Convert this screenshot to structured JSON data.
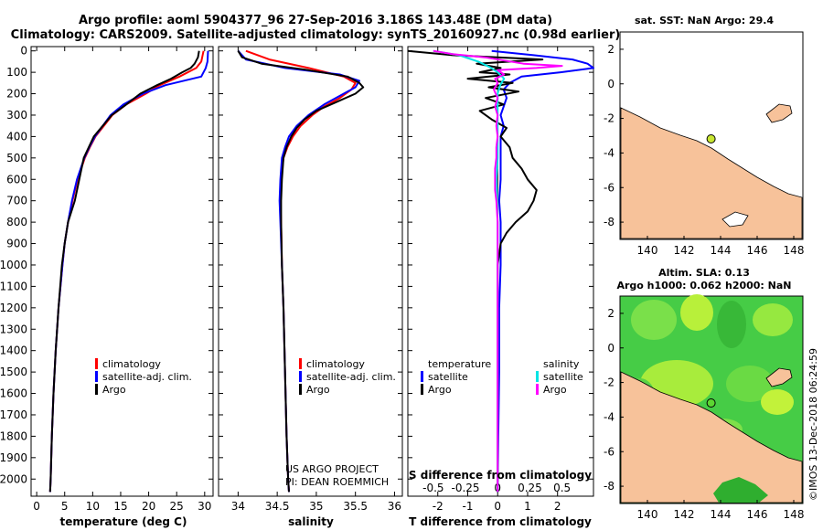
{
  "header": {
    "title_line1": "Argo profile: aoml 5904377_96 27-Sep-2016 3.186S 143.48E (DM data)",
    "title_line2": "Climatology: CARS2009. Satellite-adjusted climatology: synTS_20160927.nc (0.98d earlier)"
  },
  "colors": {
    "climatology": "#ff0000",
    "satellite": "#0000ff",
    "argo": "#000000",
    "sat_salinity": "#00e5e5",
    "argo_salinity": "#ff00ff",
    "land": "#f7c29a",
    "sea": "#ffffff"
  },
  "depth_ticks": [
    "0",
    "100",
    "200",
    "300",
    "400",
    "500",
    "600",
    "700",
    "800",
    "900",
    "1000",
    "1100",
    "1200",
    "1300",
    "1400",
    "1500",
    "1600",
    "1700",
    "1800",
    "1900",
    "2000"
  ],
  "chart_data": [
    {
      "type": "line",
      "id": "temperature",
      "xlabel": "temperature (deg C)",
      "xlim": [
        -1,
        31.5
      ],
      "ylim": [
        2080,
        -20
      ],
      "xticks": [
        "0",
        "5",
        "10",
        "15",
        "20",
        "25",
        "30"
      ],
      "legend": [
        "climatology",
        "satellite-adj. clim.",
        "Argo"
      ],
      "series": [
        {
          "name": "climatology",
          "depth": [
            0,
            50,
            80,
            120,
            160,
            200,
            250,
            300,
            350,
            400,
            450,
            500,
            600,
            700,
            800,
            900,
            1000,
            1200,
            1400,
            1600,
            1800,
            2000,
            2060
          ],
          "values": [
            29.8,
            29.4,
            28.5,
            25.5,
            22,
            19.5,
            16,
            13.5,
            12,
            10.5,
            9.5,
            8.6,
            7.3,
            6.4,
            5.6,
            5.0,
            4.6,
            3.9,
            3.4,
            3.0,
            2.7,
            2.5,
            2.4
          ]
        },
        {
          "name": "satellite-adj. clim.",
          "depth": [
            0,
            50,
            80,
            120,
            160,
            200,
            250,
            300,
            350,
            400,
            450,
            500,
            600,
            700,
            800,
            900,
            1000,
            1200,
            1400,
            1600,
            1800,
            2000,
            2060
          ],
          "values": [
            30.6,
            30.5,
            30.2,
            29.4,
            23,
            19,
            15.5,
            13.2,
            11.8,
            10.4,
            9.4,
            8.5,
            7.2,
            6.3,
            5.6,
            5.0,
            4.6,
            3.9,
            3.4,
            3.0,
            2.7,
            2.5,
            2.4
          ]
        },
        {
          "name": "Argo",
          "depth": [
            0,
            30,
            60,
            80,
            100,
            130,
            160,
            200,
            250,
            300,
            350,
            400,
            450,
            500,
            600,
            700,
            800,
            900,
            1000,
            1200,
            1400,
            1600,
            1800,
            2000,
            2060
          ],
          "values": [
            29.0,
            28.8,
            28.2,
            27.5,
            26,
            24,
            21.5,
            18.5,
            16,
            13.4,
            11.8,
            10.2,
            9.3,
            8.4,
            7.6,
            6.8,
            5.6,
            5.0,
            4.5,
            3.9,
            3.4,
            3.0,
            2.7,
            2.5,
            2.4
          ]
        }
      ]
    },
    {
      "type": "line",
      "id": "salinity",
      "xlabel": "salinity",
      "xlim": [
        33.75,
        36.1
      ],
      "ylim": [
        2080,
        -20
      ],
      "xticks": [
        "34",
        "34.5",
        "35",
        "35.5",
        "36"
      ],
      "legend": [
        "climatology",
        "satellite-adj. clim.",
        "Argo"
      ],
      "series": [
        {
          "name": "climatology",
          "depth": [
            0,
            40,
            80,
            120,
            150,
            180,
            220,
            260,
            300,
            350,
            400,
            450,
            500,
            600,
            700,
            800,
            1000,
            1200,
            1500,
            1800,
            2000,
            2060
          ],
          "values": [
            34.1,
            34.4,
            34.9,
            35.35,
            35.5,
            35.45,
            35.3,
            35.1,
            34.95,
            34.8,
            34.7,
            34.63,
            34.58,
            34.55,
            34.54,
            34.55,
            34.56,
            34.58,
            34.6,
            34.62,
            34.64,
            34.65
          ]
        },
        {
          "name": "satellite-adj. clim.",
          "depth": [
            0,
            40,
            80,
            110,
            140,
            170,
            210,
            250,
            300,
            350,
            400,
            450,
            500,
            600,
            700,
            800,
            1000,
            1200,
            1500,
            1800,
            2000,
            2060
          ],
          "values": [
            34.0,
            34.1,
            34.6,
            35.3,
            35.55,
            35.5,
            35.3,
            35.1,
            34.9,
            34.75,
            34.65,
            34.6,
            34.56,
            34.54,
            34.53,
            34.54,
            34.56,
            34.58,
            34.6,
            34.62,
            34.64,
            34.65
          ]
        },
        {
          "name": "Argo",
          "depth": [
            0,
            30,
            60,
            90,
            120,
            150,
            170,
            200,
            240,
            280,
            320,
            360,
            400,
            450,
            500,
            600,
            700,
            800,
            1000,
            1200,
            1500,
            1800,
            2000,
            2060
          ],
          "values": [
            34.0,
            34.05,
            34.3,
            34.9,
            35.4,
            35.55,
            35.6,
            35.5,
            35.25,
            35.0,
            34.85,
            34.75,
            34.68,
            34.62,
            34.58,
            34.56,
            34.55,
            34.55,
            34.56,
            34.58,
            34.6,
            34.62,
            34.64,
            34.65
          ]
        }
      ],
      "annotations": [
        "US ARGO PROJECT",
        "PI: DEAN ROEMMICH"
      ]
    },
    {
      "type": "line",
      "id": "differences",
      "xlabel": "T difference from climatology",
      "top_label": "S difference from climatology",
      "xlim": [
        -3,
        3.2
      ],
      "ylim": [
        2080,
        -20
      ],
      "xticks": [
        "-2",
        "-1",
        "0",
        "1",
        "2"
      ],
      "top_ticks": [
        "-0.5",
        "-0.25",
        "0",
        "0.25",
        "0.5"
      ],
      "legend_left_title": "temperature",
      "legend_right_title": "salinity",
      "legend": [
        "satellite",
        "Argo",
        "satellite",
        "Argo"
      ],
      "series": [
        {
          "name": "temperature satellite",
          "depth": [
            0,
            20,
            40,
            60,
            80,
            100,
            120,
            150,
            180,
            220,
            260,
            300,
            350,
            400,
            500,
            600,
            700,
            800,
            900,
            1000,
            1200,
            1500,
            1800,
            2060
          ],
          "values": [
            -0.2,
            1.2,
            2.5,
            3.0,
            3.2,
            2.1,
            0.8,
            0.4,
            0.2,
            0.3,
            0.2,
            0.1,
            0.2,
            0.1,
            0.1,
            0.1,
            0.05,
            0.1,
            0.1,
            0.1,
            0.05,
            0.05,
            0.02,
            0.0
          ]
        },
        {
          "name": "temperature Argo",
          "depth": [
            0,
            20,
            40,
            60,
            80,
            100,
            110,
            130,
            150,
            170,
            190,
            220,
            250,
            280,
            320,
            360,
            400,
            450,
            500,
            550,
            600,
            650,
            700,
            750,
            800,
            850,
            900,
            950,
            1000,
            1200,
            1500,
            1800,
            2060
          ],
          "values": [
            -3.0,
            -1.5,
            1.5,
            -0.7,
            0.1,
            -0.6,
            0.4,
            -1.0,
            0.5,
            -0.3,
            0.7,
            -0.4,
            0.2,
            -0.6,
            -0.2,
            0.3,
            0.1,
            0.4,
            0.5,
            0.8,
            1.0,
            1.3,
            1.2,
            1.0,
            0.6,
            0.3,
            0.1,
            0.05,
            0.0,
            0.0,
            0.0,
            0.0,
            0.0
          ]
        },
        {
          "name": "salinity satellite",
          "depth": [
            0,
            20,
            50,
            80,
            100,
            130,
            160,
            200,
            250,
            300,
            400,
            500,
            600,
            800,
            1000,
            1200,
            1500,
            1800,
            2060
          ],
          "values": [
            -0.5,
            -0.3,
            -0.15,
            -0.05,
            0.0,
            0.05,
            0.02,
            0.0,
            0.0,
            0.0,
            0.0,
            0.0,
            -0.01,
            0.0,
            0.0,
            0.0,
            0.0,
            0.0,
            0.0
          ]
        },
        {
          "name": "salinity Argo",
          "depth": [
            0,
            15,
            30,
            45,
            60,
            70,
            80,
            90,
            110,
            130,
            150,
            180,
            220,
            260,
            300,
            350,
            400,
            450,
            500,
            550,
            600,
            650,
            700,
            800,
            900,
            1000,
            1200,
            1500,
            1800,
            2060
          ],
          "values": [
            -0.5,
            -0.35,
            -0.1,
            0.05,
            0.2,
            0.5,
            0.3,
            0.0,
            0.05,
            -0.02,
            0.0,
            -0.03,
            0.0,
            -0.02,
            0.0,
            -0.01,
            0.0,
            -0.01,
            -0.01,
            -0.02,
            -0.02,
            -0.02,
            -0.01,
            0.0,
            0.0,
            0.0,
            0.0,
            0.0,
            0.0,
            0.0
          ]
        }
      ]
    },
    {
      "type": "map",
      "id": "sst_map",
      "title": "sat. SST: NaN Argo: 29.4",
      "xlim": [
        138.5,
        148.5
      ],
      "ylim": [
        -9,
        3
      ],
      "xticks": [
        "140",
        "142",
        "144",
        "146",
        "148"
      ],
      "yticks": [
        "2",
        "0",
        "-2",
        "-4",
        "-6",
        "-8"
      ],
      "argo_position": [
        143.48,
        -3.186
      ]
    },
    {
      "type": "map",
      "id": "sla_map",
      "title_line1": "Altim. SLA: 0.13",
      "title_line2": "Argo h1000: 0.062 h2000: NaN",
      "xlim": [
        138.5,
        148.5
      ],
      "ylim": [
        -9,
        3
      ],
      "xticks": [
        "140",
        "142",
        "144",
        "146",
        "148"
      ],
      "yticks": [
        "2",
        "0",
        "-2",
        "-4",
        "-6",
        "-8"
      ],
      "argo_position": [
        143.48,
        -3.186
      ]
    }
  ],
  "footer_stamp": "©IMOS 13-Dec-2018 06:24:59"
}
